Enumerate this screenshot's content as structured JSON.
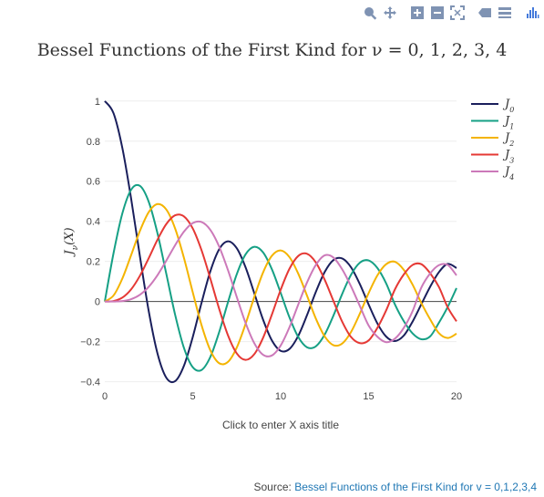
{
  "modebar": {
    "groups": [
      [
        "zoom-icon",
        "pan-icon"
      ],
      [
        "zoom-in-icon",
        "zoom-out-icon",
        "autoscale-icon"
      ],
      [
        "hover-closest-icon",
        "hover-compare-icon"
      ],
      [
        "plotly-logo-icon"
      ]
    ],
    "icon_color": "#7f93b3",
    "logo_color": "#447adb"
  },
  "source": {
    "prefix": "Source: ",
    "link_text": "Bessel Functions of the First Kind for v = 0,1,2,3,4"
  },
  "chart_data": {
    "type": "line",
    "title": "Bessel Functions of the First Kind for ν = 0, 1, 2, 3, 4",
    "xlabel": "Click to enter X axis title",
    "ylabel": "J_ν(X)",
    "xlim": [
      0,
      20
    ],
    "ylim": [
      -0.42,
      1.04
    ],
    "xticks": [
      "0",
      "5",
      "10",
      "15",
      "20"
    ],
    "xtick_values": [
      0,
      5,
      10,
      15,
      20
    ],
    "yticks": [
      "−0.4",
      "−0.2",
      "0",
      "0.2",
      "0.4",
      "0.6",
      "0.8",
      "1"
    ],
    "ytick_values": [
      -0.4,
      -0.2,
      0,
      0.2,
      0.4,
      0.6,
      0.8,
      1
    ],
    "grid": true,
    "legend_position": "top-right",
    "x": [
      0,
      0.5,
      1,
      1.5,
      2,
      2.5,
      3,
      3.5,
      4,
      4.5,
      5,
      5.5,
      6,
      6.5,
      7,
      7.5,
      8,
      8.5,
      9,
      9.5,
      10,
      10.5,
      11,
      11.5,
      12,
      12.5,
      13,
      13.5,
      14,
      14.5,
      15,
      15.5,
      16,
      16.5,
      17,
      17.5,
      18,
      18.5,
      19,
      19.5,
      20
    ],
    "series": [
      {
        "name": "J",
        "subscript": "0",
        "color": "#1a1f5c",
        "values": [
          1,
          0.9385,
          0.7652,
          0.5118,
          0.2239,
          -0.0484,
          -0.2601,
          -0.3801,
          -0.3971,
          -0.3205,
          -0.1776,
          -0.0068,
          0.1506,
          0.2601,
          0.3001,
          0.2663,
          0.1717,
          0.0419,
          -0.0903,
          -0.1939,
          -0.2459,
          -0.2366,
          -0.1712,
          -0.0677,
          0.0477,
          0.1468,
          0.2069,
          0.215,
          0.1711,
          0.0875,
          -0.0142,
          -0.1092,
          -0.1749,
          -0.1969,
          -0.1699,
          -0.1003,
          -0.0134,
          0.0735,
          0.1466,
          0.1876,
          0.167
        ]
      },
      {
        "name": "J",
        "subscript": "1",
        "color": "#16a085",
        "values": [
          0,
          0.2423,
          0.4401,
          0.5579,
          0.5767,
          0.4971,
          0.3391,
          0.1374,
          -0.066,
          -0.2311,
          -0.3276,
          -0.3414,
          -0.2767,
          -0.1538,
          -0.0047,
          0.1352,
          0.2346,
          0.2731,
          0.2453,
          0.1613,
          0.0435,
          -0.0789,
          -0.1768,
          -0.2284,
          -0.2234,
          -0.1655,
          -0.0703,
          0.038,
          0.1334,
          0.1934,
          0.2051,
          0.1672,
          0.0904,
          -0.015,
          -0.0977,
          -0.1587,
          -0.188,
          -0.174,
          -0.1057,
          -0.0269,
          0.0668
        ]
      },
      {
        "name": "J",
        "subscript": "2",
        "color": "#f4b400",
        "values": [
          0,
          0.0306,
          0.1149,
          0.2321,
          0.3528,
          0.4461,
          0.4861,
          0.4586,
          0.3641,
          0.2178,
          0.0466,
          -0.1173,
          -0.2429,
          -0.3074,
          -0.3014,
          -0.2303,
          -0.113,
          0.0223,
          0.1448,
          0.2279,
          0.2546,
          0.2216,
          0.139,
          0.0291,
          -0.0849,
          -0.1733,
          -0.2177,
          -0.2094,
          -0.152,
          -0.0609,
          0.0416,
          0.1305,
          0.1862,
          0.1984,
          0.1584,
          0.0845,
          -0.0075,
          -0.0885,
          -0.1578,
          -0.182,
          -0.1603
        ]
      },
      {
        "name": "J",
        "subscript": "3",
        "color": "#e53935",
        "values": [
          0,
          0.0026,
          0.0196,
          0.061,
          0.1289,
          0.2166,
          0.3091,
          0.3868,
          0.4302,
          0.4247,
          0.3648,
          0.2561,
          0.1148,
          -0.0353,
          -0.1676,
          -0.2581,
          -0.2911,
          -0.2626,
          -0.1809,
          -0.0653,
          0.0584,
          0.1633,
          0.2273,
          0.2381,
          0.1951,
          0.1096,
          0.0033,
          -0.101,
          -0.1768,
          -0.2073,
          -0.194,
          -0.1311,
          -0.0438,
          0.061,
          0.1349,
          0.1824,
          0.1863,
          0.1413,
          0.0725,
          -0.0292,
          -0.0989
        ]
      },
      {
        "name": "J",
        "subscript": "4",
        "color": "#cc79b9",
        "values": [
          0,
          0.0002,
          0.0025,
          0.0118,
          0.034,
          0.0738,
          0.132,
          0.2044,
          0.2811,
          0.3484,
          0.3912,
          0.3967,
          0.3576,
          0.2748,
          0.1578,
          0.0239,
          -0.1054,
          -0.2077,
          -0.2655,
          -0.2691,
          -0.2196,
          -0.1284,
          -0.015,
          0.0954,
          0.1825,
          0.2301,
          0.2193,
          0.1603,
          0.0762,
          -0.0217,
          -0.1192,
          -0.1755,
          -0.2027,
          -0.185,
          -0.1316,
          -0.0483,
          0.0696,
          0.14,
          0.1816,
          0.1826,
          0.1307
        ]
      }
    ]
  }
}
